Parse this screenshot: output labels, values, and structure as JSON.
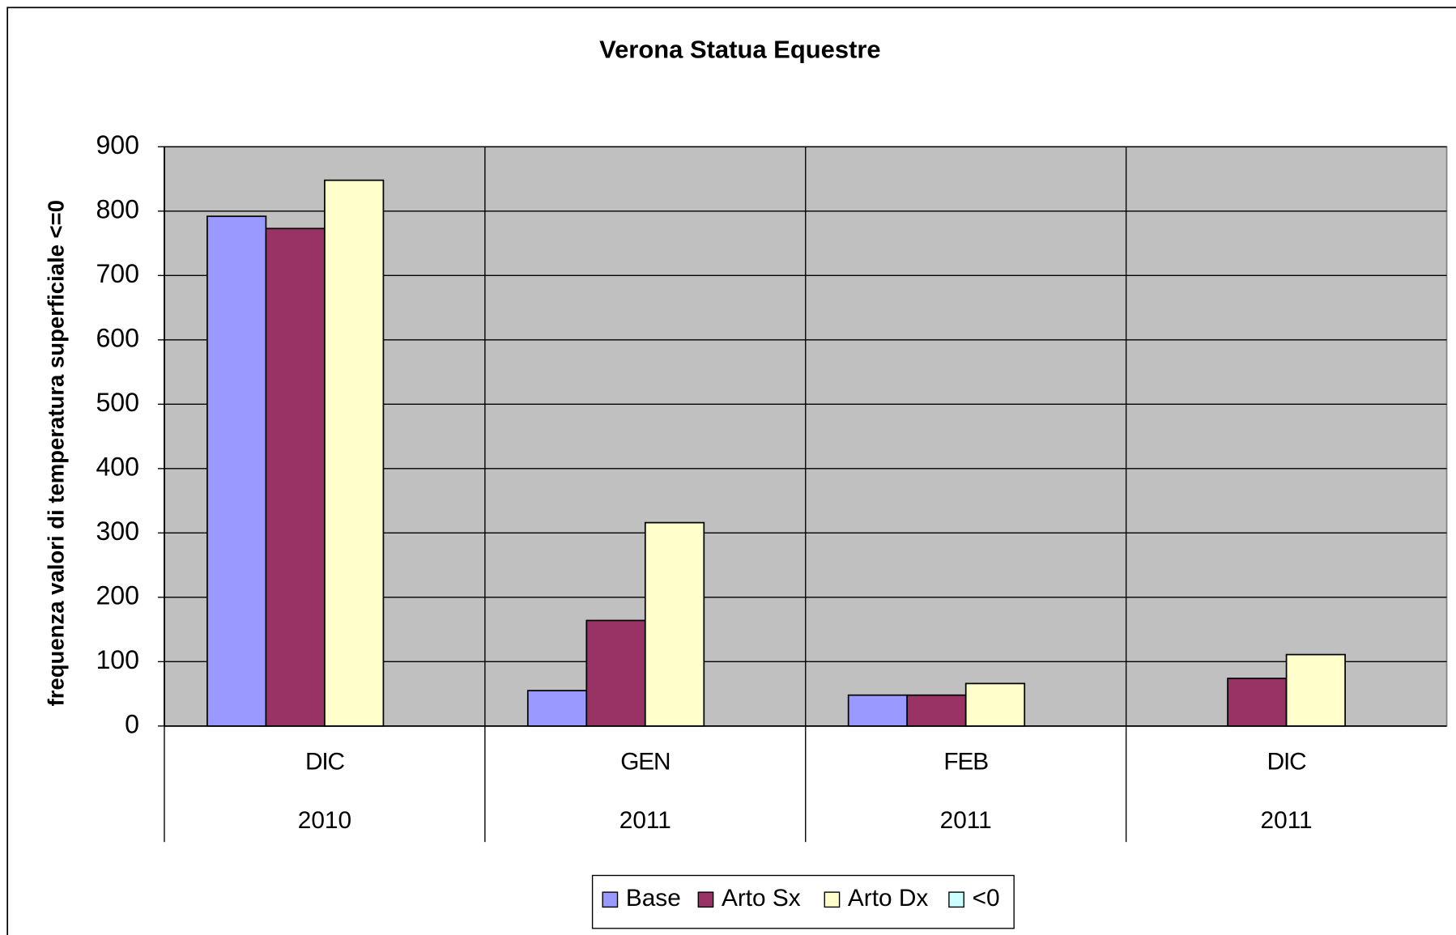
{
  "chart_data": {
    "type": "bar",
    "title": "Verona Statua Equestre",
    "y_label": "frequenza valori di temperatura superficiale <=0",
    "categories": [
      "DIC",
      "GEN",
      "FEB",
      "DIC"
    ],
    "category_groups": [
      "2010",
      "2011",
      "2011",
      "2011"
    ],
    "series": [
      {
        "name": "Base",
        "color": "#9999ff",
        "values": [
          792,
          55,
          48,
          0
        ]
      },
      {
        "name": "Arto Sx",
        "color": "#993366",
        "values": [
          773,
          164,
          48,
          74
        ]
      },
      {
        "name": "Arto Dx",
        "color": "#ffffcc",
        "values": [
          848,
          316,
          66,
          111
        ]
      },
      {
        "name": "<0",
        "color": "#ccffff",
        "values": [
          0,
          0,
          0,
          0
        ]
      }
    ],
    "ylim": [
      0,
      900
    ],
    "yticks": [
      0,
      100,
      200,
      300,
      400,
      500,
      600,
      700,
      800,
      900
    ],
    "grid": true,
    "plot_background": "#c0c0c0",
    "legend": "bottom"
  }
}
